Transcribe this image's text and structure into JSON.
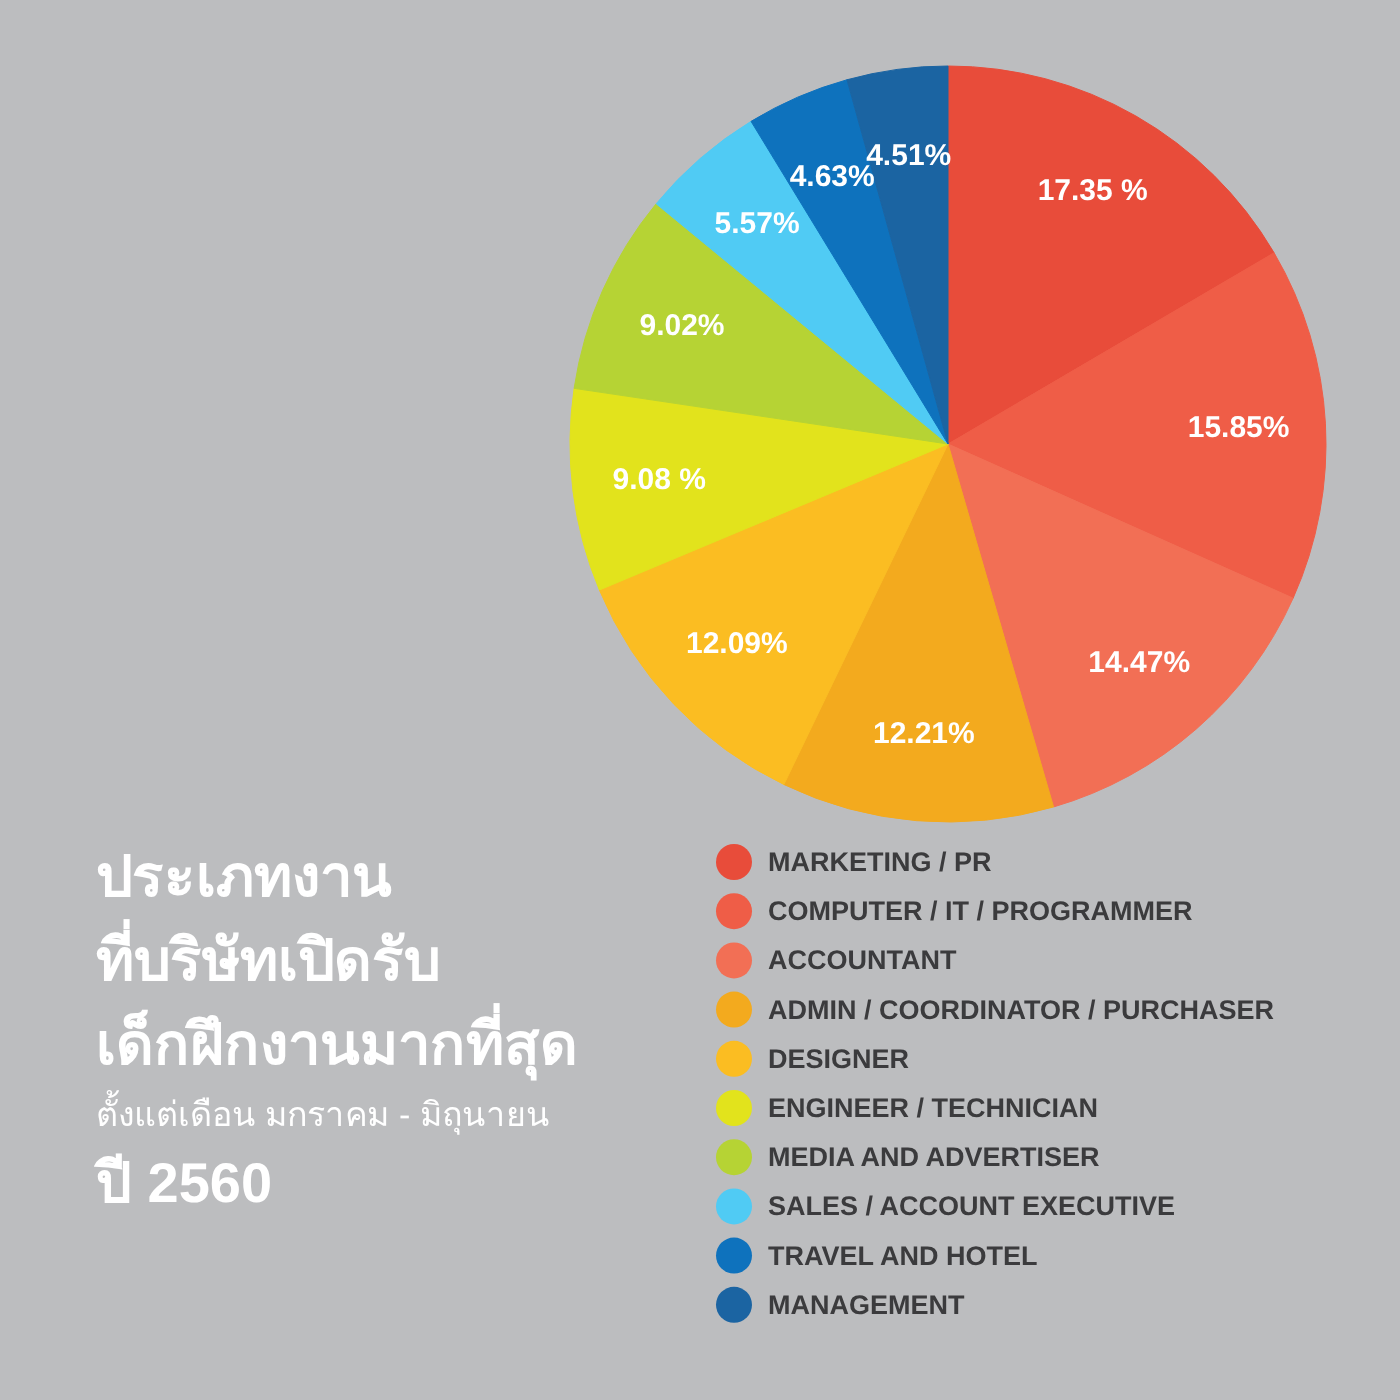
{
  "chart_data": {
    "type": "pie",
    "title": "ประเภทงาน\nที่บริษัทเปิดรับ\nเด็กฝึกงานมากที่สุด",
    "subtitle": "ตั้งแต่เดือน มกราคม - มิถุนายน",
    "annotations": [
      "ปี 2560"
    ],
    "categories": [
      "MARKETING / PR",
      "COMPUTER / IT / PROGRAMMER",
      "ACCOUNTANT",
      "ADMIN / COORDINATOR / PURCHASER",
      "DESIGNER",
      "ENGINEER / TECHNICIAN",
      "MEDIA AND ADVERTISER",
      "SALES / ACCOUNT EXECUTIVE",
      "TRAVEL AND HOTEL",
      "MANAGEMENT"
    ],
    "values": [
      17.35,
      15.85,
      14.47,
      12.21,
      12.09,
      9.08,
      9.02,
      5.57,
      4.63,
      4.51
    ],
    "value_labels": [
      "17.35 %",
      "15.85%",
      "14.47%",
      "12.21%",
      "12.09%",
      "9.08 %",
      "9.02%",
      "5.57%",
      "4.63%",
      "4.51%"
    ],
    "colors": [
      "#e84c3a",
      "#ef5d47",
      "#f26f55",
      "#f3aa1e",
      "#fbbd22",
      "#e2e31c",
      "#b6d334",
      "#50cbf4",
      "#0e72bd",
      "#1b64a2"
    ],
    "legend": "bottom right",
    "marker": "circle"
  }
}
